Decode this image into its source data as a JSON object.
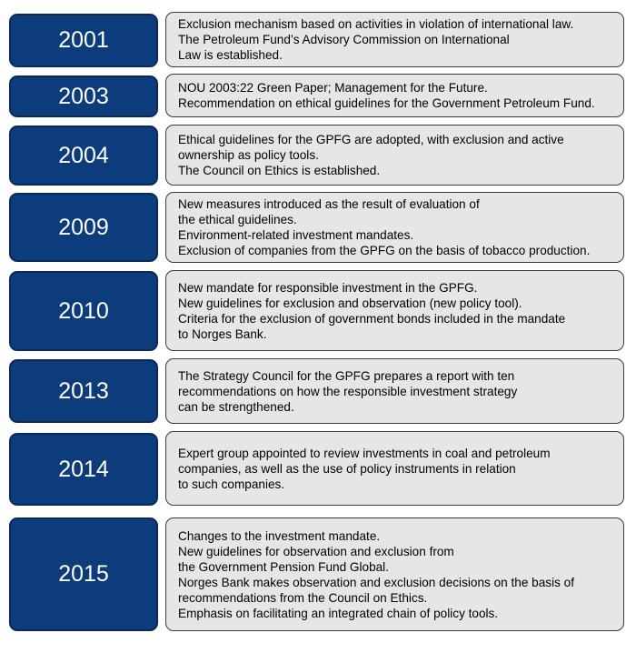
{
  "timeline": [
    {
      "year": "2001",
      "lines": [
        "Exclusion mechanism based on activities in violation of international law.",
        "The Petroleum Fund’s Advisory Commission on International",
        "Law is established."
      ]
    },
    {
      "year": "2003",
      "lines": [
        "NOU 2003:22 Green Paper; Management for the Future.",
        "Recommendation on ethical guidelines for the Government Petroleum Fund."
      ]
    },
    {
      "year": "2004",
      "lines": [
        "Ethical guidelines for the GPFG are adopted, with exclusion and active",
        "ownership as policy tools.",
        "The Council on Ethics is established."
      ]
    },
    {
      "year": "2009",
      "lines": [
        "New measures introduced as the result of evaluation of",
        "the ethical guidelines.",
        "Environment-related investment mandates.",
        "Exclusion of companies from the GPFG on the basis of tobacco production."
      ]
    },
    {
      "year": "2010",
      "lines": [
        "New mandate for responsible investment in the GPFG.",
        "New guidelines for exclusion and observation (new policy tool).",
        "Criteria for the exclusion of government bonds included in the mandate",
        "to Norges Bank."
      ]
    },
    {
      "year": "2013",
      "lines": [
        "The Strategy Council for the GPFG prepares a report with ten",
        "recommendations on how the responsible investment strategy",
        "can be strengthened."
      ]
    },
    {
      "year": "2014",
      "lines": [
        "Expert group appointed to review investments in coal and petroleum",
        "companies, as well as the use of policy instruments in relation",
        "to such companies."
      ]
    },
    {
      "year": "2015",
      "lines": [
        "Changes to the investment mandate.",
        "New guidelines for observation and exclusion from",
        "the Government Pension Fund Global.",
        "Norges Bank makes observation and exclusion decisions on the basis of",
        "recommendations from the Council on Ethics.",
        "Emphasis on facilitating an integrated chain of policy tools."
      ]
    }
  ],
  "colors": {
    "year_box": "#0c3c7c",
    "desc_box": "#e6e6e6"
  }
}
